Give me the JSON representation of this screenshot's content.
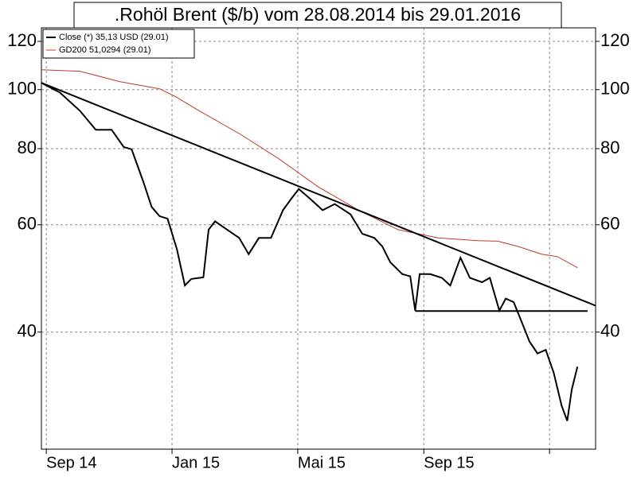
{
  "chart_data": {
    "type": "line",
    "title": ".Rohöl Brent ($/b) vom 28.08.2014 bis 29.01.2016",
    "log_y": true,
    "grid": true,
    "legend": "top-left",
    "xlim": [
      2014.654,
      2016.122
    ],
    "ylim": [
      25.7,
      126.3
    ],
    "xticks": [
      {
        "value": 2014.667,
        "label": "Sep 14"
      },
      {
        "value": 2015.0,
        "label": "Jan 15"
      },
      {
        "value": 2015.333,
        "label": "Mai 15"
      },
      {
        "value": 2015.667,
        "label": "Sep 15"
      },
      {
        "value": 2016.0,
        "label": null
      }
    ],
    "yticks": [
      40,
      60,
      80,
      100,
      120
    ],
    "series": [
      {
        "name": "Close (*) 35,13 USD (29.01)",
        "color": "#000000",
        "x": [
          2014.654,
          2014.703,
          2014.756,
          2014.798,
          2014.84,
          2014.872,
          2014.893,
          2014.924,
          2014.946,
          2014.967,
          2014.988,
          2015.013,
          2015.034,
          2015.051,
          2015.083,
          2015.097,
          2015.114,
          2015.146,
          2015.178,
          2015.203,
          2015.23,
          2015.262,
          2015.294,
          2015.315,
          2015.336,
          2015.367,
          2015.399,
          2015.431,
          2015.473,
          2015.504,
          2015.536,
          2015.557,
          2015.578,
          2015.61,
          2015.631,
          2015.644,
          2015.656,
          2015.684,
          2015.715,
          2015.737,
          2015.764,
          2015.789,
          2015.821,
          2015.842,
          2015.867,
          2015.884,
          2015.905,
          2015.926,
          2015.947,
          2015.968,
          2015.99,
          2016.011,
          2016.032,
          2016.047,
          2016.059,
          2016.074
        ],
        "values": [
          102.6,
          98.9,
          92.3,
          85.9,
          85.9,
          80.5,
          79.8,
          70.6,
          64.2,
          62.0,
          61.4,
          54.7,
          47.7,
          48.9,
          49.2,
          58.9,
          60.8,
          58.9,
          57.1,
          53.7,
          57.1,
          57.1,
          63.4,
          66.1,
          68.7,
          66.1,
          63.4,
          64.9,
          62.4,
          58.0,
          57.1,
          55.3,
          52.1,
          49.8,
          49.4,
          43.4,
          49.8,
          49.8,
          49.1,
          47.7,
          53.0,
          49.1,
          48.3,
          49.1,
          43.4,
          45.4,
          44.8,
          41.6,
          38.6,
          36.9,
          37.4,
          34.3,
          30.3,
          28.6,
          32.2,
          35.1
        ]
      },
      {
        "name": "GD200 51,0294 (29.01)",
        "color": "#c0392b",
        "x": [
          2014.654,
          2014.756,
          2014.861,
          2014.967,
          2015.009,
          2015.072,
          2015.178,
          2015.283,
          2015.388,
          2015.494,
          2015.599,
          2015.705,
          2015.81,
          2015.863,
          2015.916,
          2015.979,
          2016.021,
          2016.074
        ],
        "values": [
          107.8,
          107.2,
          103.1,
          100.3,
          97.4,
          92.3,
          84.7,
          77.0,
          69.2,
          63.4,
          58.9,
          57.1,
          56.5,
          56.4,
          55.3,
          53.7,
          53.2,
          51.03
        ]
      }
    ],
    "trend_lines": [
      {
        "x": [
          2014.654,
          2016.122
        ],
        "values": [
          102.6,
          44.2
        ]
      },
      {
        "x": [
          2015.644,
          2016.101
        ],
        "values": [
          43.3,
          43.3
        ]
      }
    ]
  }
}
